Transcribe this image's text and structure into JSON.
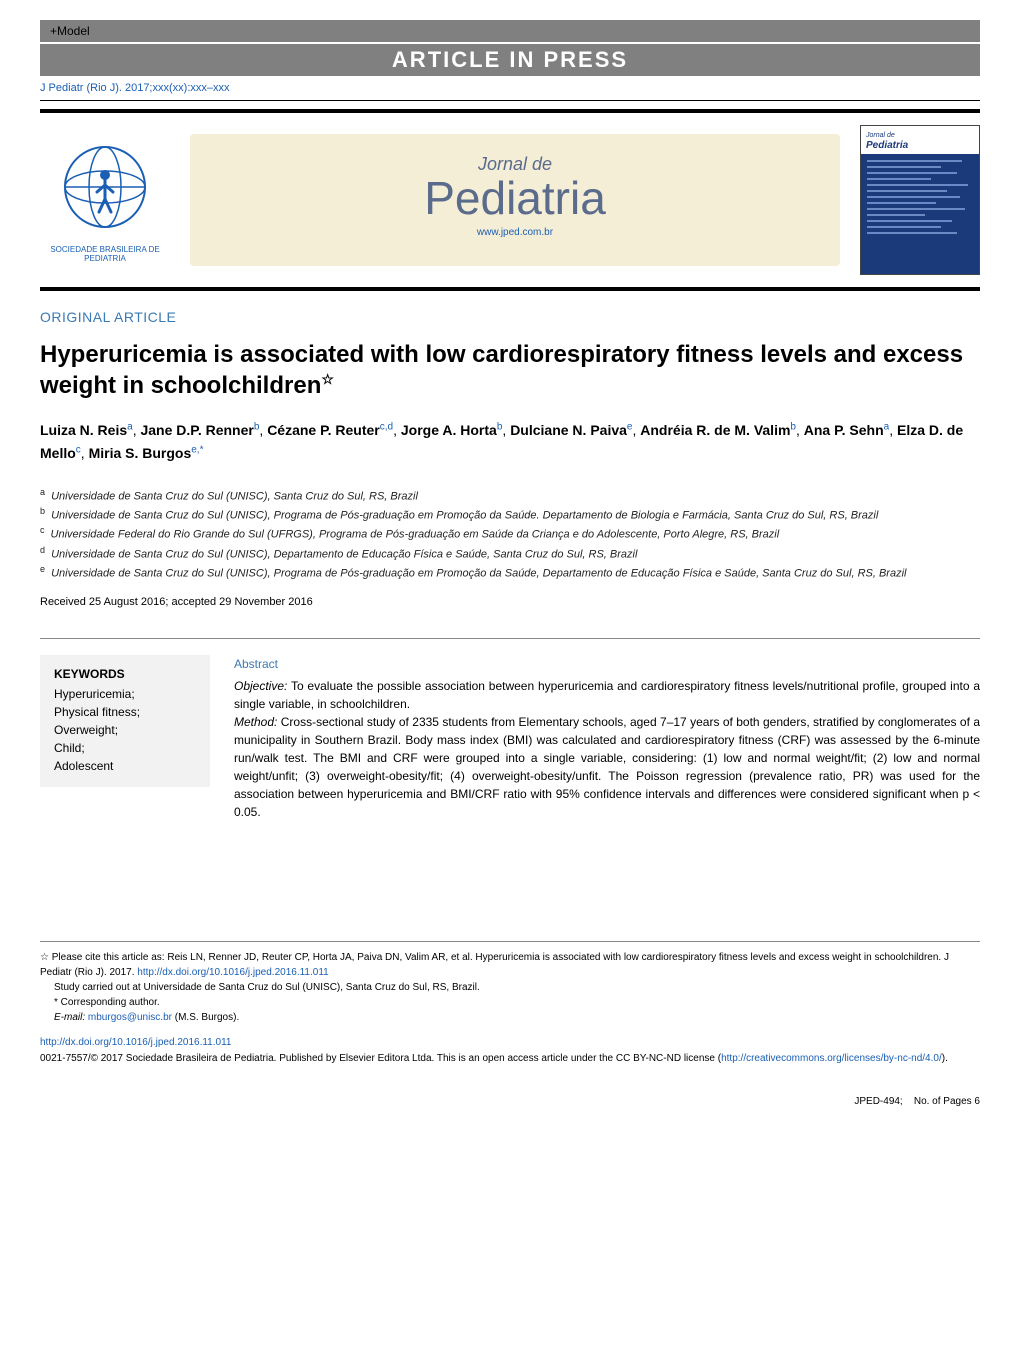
{
  "header": {
    "model_label": "+Model",
    "press_label": "ARTICLE IN PRESS",
    "citation": "J Pediatr (Rio J). 2017;xxx(xx):xxx–xxx"
  },
  "masthead": {
    "society_name": "SOCIEDADE BRASILEIRA DE PEDIATRIA",
    "journal_small": "Jornal de",
    "journal_big": "Pediatria",
    "journal_url": "www.jped.com.br",
    "cover_label": "Pediatria"
  },
  "article": {
    "type": "ORIGINAL ARTICLE",
    "title": "Hyperuricemia is associated with low cardiorespiratory fitness levels and excess weight in schoolchildren",
    "star": "☆"
  },
  "authors": [
    {
      "name": "Luiza N. Reis",
      "aff": "a"
    },
    {
      "name": "Jane D.P. Renner",
      "aff": "b"
    },
    {
      "name": "Cézane P. Reuter",
      "aff": "c,d"
    },
    {
      "name": "Jorge A. Horta",
      "aff": "b"
    },
    {
      "name": "Dulciane N. Paiva",
      "aff": "e"
    },
    {
      "name": "Andréia R. de M. Valim",
      "aff": "b"
    },
    {
      "name": "Ana P. Sehn",
      "aff": "a"
    },
    {
      "name": "Elza D. de Mello",
      "aff": "c"
    },
    {
      "name": "Miria S. Burgos",
      "aff": "e,*"
    }
  ],
  "affiliations": [
    {
      "sup": "a",
      "text": "Universidade de Santa Cruz do Sul (UNISC), Santa Cruz do Sul, RS, Brazil"
    },
    {
      "sup": "b",
      "text": "Universidade de Santa Cruz do Sul (UNISC), Programa de Pós-graduação em Promoção da Saúde. Departamento de Biologia e Farmácia, Santa Cruz do Sul, RS, Brazil"
    },
    {
      "sup": "c",
      "text": "Universidade Federal do Rio Grande do Sul (UFRGS), Programa de Pós-graduação em Saúde da Criança e do Adolescente, Porto Alegre, RS, Brazil"
    },
    {
      "sup": "d",
      "text": "Universidade de Santa Cruz do Sul (UNISC), Departamento de Educação Física e Saúde, Santa Cruz do Sul, RS, Brazil"
    },
    {
      "sup": "e",
      "text": "Universidade de Santa Cruz do Sul (UNISC), Programa de Pós-graduação em Promoção da Saúde, Departamento de Educação Física e Saúde, Santa Cruz do Sul, RS, Brazil"
    }
  ],
  "dates": "Received 25 August 2016; accepted 29 November 2016",
  "keywords": {
    "title": "KEYWORDS",
    "items": [
      "Hyperuricemia;",
      "Physical fitness;",
      "Overweight;",
      "Child;",
      "Adolescent"
    ]
  },
  "abstract": {
    "title": "Abstract",
    "objective_label": "Objective:",
    "objective_text": " To evaluate the possible association between hyperuricemia and cardiorespiratory fitness levels/nutritional profile, grouped into a single variable, in schoolchildren.",
    "method_label": "Method:",
    "method_text": " Cross-sectional study of 2335 students from Elementary schools, aged 7–17 years of both genders, stratified by conglomerates of a municipality in Southern Brazil. Body mass index (BMI) was calculated and cardiorespiratory fitness (CRF) was assessed by the 6-minute run/walk test. The BMI and CRF were grouped into a single variable, considering: (1) low and normal weight/fit; (2) low and normal weight/unfit; (3) overweight-obesity/fit; (4) overweight-obesity/unfit. The Poisson regression (prevalence ratio, PR) was used for the association between hyperuricemia and BMI/CRF ratio with 95% confidence intervals and differences were considered significant when p < 0.05."
  },
  "footnotes": {
    "cite_prefix": "☆ Please cite this article as: Reis LN, Renner JD, Reuter CP, Horta JA, Paiva DN, Valim AR, et al. Hyperuricemia is associated with low cardiorespiratory fitness levels and excess weight in schoolchildren. J Pediatr (Rio J). 2017. ",
    "cite_doi": "http://dx.doi.org/10.1016/j.jped.2016.11.011",
    "study_site": "Study carried out at Universidade de Santa Cruz do Sul (UNISC), Santa Cruz do Sul, RS, Brazil.",
    "corresponding": "* Corresponding author.",
    "email_label": "E-mail: ",
    "email": "mburgos@unisc.br",
    "email_suffix": " (M.S. Burgos).",
    "doi": "http://dx.doi.org/10.1016/j.jped.2016.11.011",
    "copyright_prefix": "0021-7557/© 2017 Sociedade Brasileira de Pediatria. Published by Elsevier Editora Ltda. This is an open access article under the CC BY-NC-ND license (",
    "license_url": "http://creativecommons.org/licenses/by-nc-nd/4.0/",
    "copyright_suffix": ")."
  },
  "footer": {
    "jped_id": "JPED-494;",
    "pages": "No. of Pages 6"
  },
  "colors": {
    "link": "#1a5fb4",
    "heading": "#3a7ab5",
    "banner_bg": "#f5eed6",
    "banner_text": "#5a6b8c",
    "keywords_bg": "#f2f2f2",
    "header_gray": "#808080",
    "cover_blue": "#1a3a7a"
  }
}
